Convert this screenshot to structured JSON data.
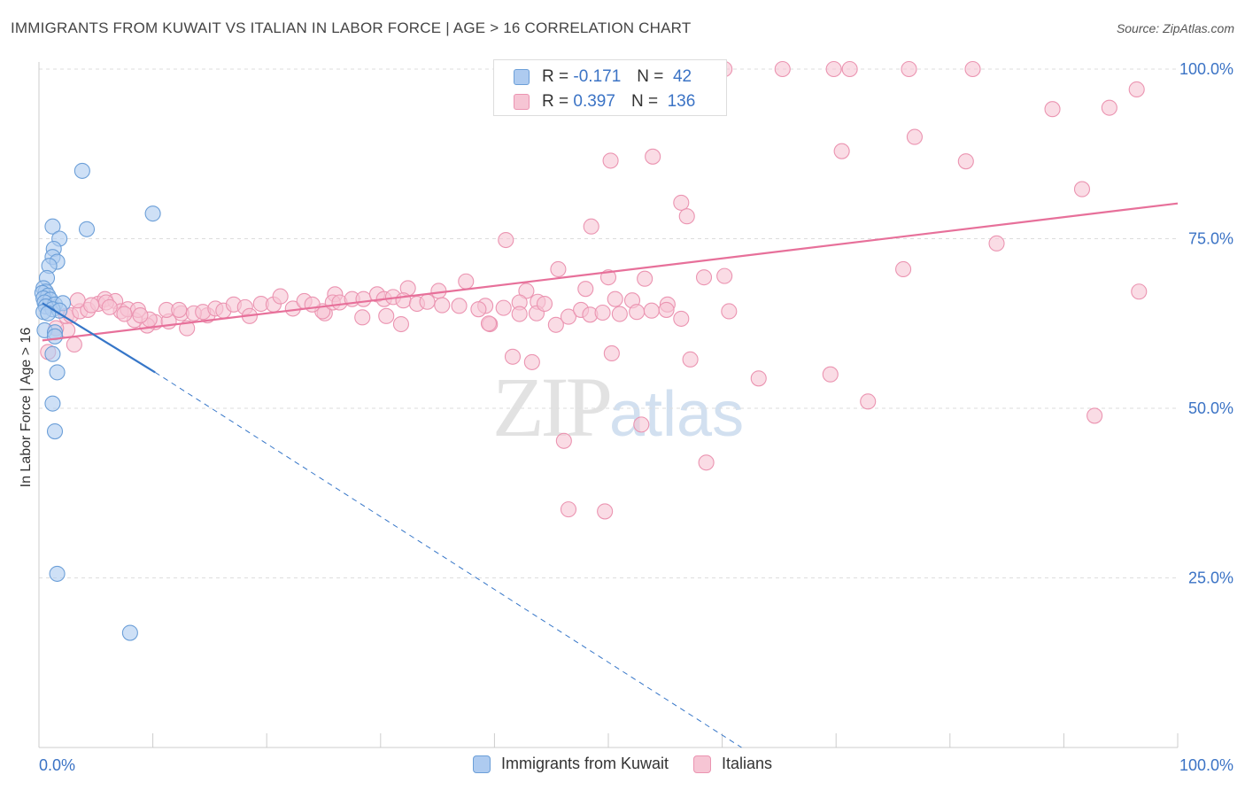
{
  "title": "IMMIGRANTS FROM KUWAIT VS ITALIAN IN LABOR FORCE | AGE > 16 CORRELATION CHART",
  "source": "Source: ZipAtlas.com",
  "watermark": {
    "zip": "ZIP",
    "atlas": "atlas"
  },
  "colors": {
    "blue_fill": "#aecbf0",
    "blue_stroke": "#6c9fd8",
    "blue_line": "#3676c8",
    "pink_fill": "#f6c5d4",
    "pink_stroke": "#eb94b1",
    "pink_line": "#e7709a",
    "axis_text": "#3b73c5",
    "grid": "#dddddd"
  },
  "legend": {
    "rows": [
      {
        "r_label": "R =",
        "r_value": "-0.171",
        "n_label": "N =",
        "n_value": "42"
      },
      {
        "r_label": "R =",
        "r_value": "0.397",
        "n_label": "N =",
        "n_value": "136"
      }
    ]
  },
  "bottom_legend": [
    "Immigrants from Kuwait",
    "Italians"
  ],
  "chart_data": {
    "type": "scatter",
    "title": "IMMIGRANTS FROM KUWAIT VS ITALIAN IN LABOR FORCE | AGE > 16 CORRELATION CHART",
    "xlabel": "",
    "ylabel": "In Labor Force | Age > 16",
    "xlim": [
      0,
      100
    ],
    "ylim": [
      0,
      100
    ],
    "x_tick_labels": [
      "0.0%",
      "100.0%"
    ],
    "y_ticks": [
      25,
      50,
      75,
      100
    ],
    "y_tick_labels": [
      "25.0%",
      "50.0%",
      "75.0%",
      "100.0%"
    ],
    "grid": true,
    "legend_position": "top-center",
    "series": [
      {
        "name": "Immigrants from Kuwait",
        "trend": {
          "x": [
            0.3,
            10.2
          ],
          "y": [
            65.5,
            55.3
          ],
          "dashed_to": [
            61.7,
            0
          ]
        },
        "points": [
          [
            3.8,
            85
          ],
          [
            10,
            78.7
          ],
          [
            4.2,
            76.4
          ],
          [
            1.2,
            76.8
          ],
          [
            1.8,
            75
          ],
          [
            1.3,
            73.5
          ],
          [
            1.2,
            72.3
          ],
          [
            1.6,
            71.6
          ],
          [
            0.9,
            71
          ],
          [
            0.7,
            69.2
          ],
          [
            0.4,
            67.7
          ],
          [
            0.6,
            67.2
          ],
          [
            0.3,
            67
          ],
          [
            0.8,
            66.6
          ],
          [
            0.4,
            66.2
          ],
          [
            1,
            66
          ],
          [
            0.5,
            65.6
          ],
          [
            1.4,
            65.3
          ],
          [
            2.1,
            65.5
          ],
          [
            0.6,
            65
          ],
          [
            1.2,
            64.6
          ],
          [
            1.8,
            64.4
          ],
          [
            0.4,
            64.2
          ],
          [
            0.8,
            64
          ],
          [
            0.5,
            61.5
          ],
          [
            1.4,
            61.2
          ],
          [
            1.4,
            60.6
          ],
          [
            1.2,
            58
          ],
          [
            1.6,
            55.3
          ],
          [
            1.2,
            50.7
          ],
          [
            1.4,
            46.6
          ],
          [
            1.6,
            25.6
          ],
          [
            8,
            16.9
          ]
        ]
      },
      {
        "name": "Italians",
        "trend": {
          "x": [
            0.3,
            100
          ],
          "y": [
            60,
            80.2
          ]
        },
        "points": [
          [
            56.2,
            100
          ],
          [
            58.2,
            100
          ],
          [
            60.2,
            100
          ],
          [
            65.3,
            100
          ],
          [
            69.8,
            100
          ],
          [
            71.2,
            100
          ],
          [
            76.4,
            100
          ],
          [
            82,
            100
          ],
          [
            96.4,
            97
          ],
          [
            89,
            94.1
          ],
          [
            94,
            94.3
          ],
          [
            76.9,
            90
          ],
          [
            70.5,
            87.9
          ],
          [
            50.2,
            86.5
          ],
          [
            53.9,
            87.1
          ],
          [
            81.4,
            86.4
          ],
          [
            91.6,
            82.3
          ],
          [
            56.4,
            80.3
          ],
          [
            56.9,
            78.3
          ],
          [
            48.5,
            76.8
          ],
          [
            41,
            74.8
          ],
          [
            60.2,
            69.5
          ],
          [
            84.1,
            74.3
          ],
          [
            75.9,
            70.5
          ],
          [
            45.6,
            70.5
          ],
          [
            50,
            69.3
          ],
          [
            53.2,
            69.1
          ],
          [
            58.4,
            69.3
          ],
          [
            37.5,
            68.7
          ],
          [
            42.8,
            67.3
          ],
          [
            48,
            67.6
          ],
          [
            35.1,
            67.3
          ],
          [
            32.4,
            67.7
          ],
          [
            26,
            66.8
          ],
          [
            96.6,
            67.2
          ],
          [
            50.6,
            66.1
          ],
          [
            52.1,
            65.9
          ],
          [
            55.2,
            65.3
          ],
          [
            43.8,
            65.7
          ],
          [
            42.2,
            65.6
          ],
          [
            39.2,
            65.1
          ],
          [
            60.6,
            64.3
          ],
          [
            56.4,
            63.2
          ],
          [
            45.4,
            62.3
          ],
          [
            39.6,
            62.4
          ],
          [
            39.5,
            62.5
          ],
          [
            30.5,
            63.6
          ],
          [
            31.8,
            62.4
          ],
          [
            28.4,
            63.4
          ],
          [
            25.1,
            64
          ],
          [
            24.9,
            64.3
          ],
          [
            12.5,
            64
          ],
          [
            14.8,
            63.7
          ],
          [
            10.2,
            62.7
          ],
          [
            9.5,
            62.2
          ],
          [
            8.4,
            63
          ],
          [
            11.4,
            62.8
          ],
          [
            13,
            61.8
          ],
          [
            41.6,
            57.6
          ],
          [
            43.3,
            56.8
          ],
          [
            50.3,
            58.1
          ],
          [
            57.2,
            57.2
          ],
          [
            63.2,
            54.4
          ],
          [
            69.5,
            55
          ],
          [
            72.8,
            51
          ],
          [
            92.7,
            48.9
          ],
          [
            46.1,
            45.2
          ],
          [
            52.9,
            47.6
          ],
          [
            58.6,
            42
          ],
          [
            46.5,
            35.1
          ],
          [
            49.7,
            34.8
          ],
          [
            3.1,
            59.4
          ],
          [
            2.5,
            61.5
          ],
          [
            1.5,
            61.8
          ],
          [
            0.8,
            58.3
          ],
          [
            2.4,
            63.6
          ],
          [
            2.8,
            63.7
          ],
          [
            3.6,
            64.3
          ],
          [
            4.3,
            64.5
          ],
          [
            5.2,
            65.4
          ],
          [
            5.8,
            66.1
          ],
          [
            6.7,
            65.8
          ],
          [
            7.2,
            64.3
          ],
          [
            7.8,
            64.6
          ],
          [
            8.7,
            64.5
          ],
          [
            9.7,
            63.1
          ],
          [
            11.2,
            64.5
          ],
          [
            12.3,
            64.5
          ],
          [
            13.6,
            64
          ],
          [
            14.4,
            64.2
          ],
          [
            15.5,
            64.7
          ],
          [
            16.2,
            64.4
          ],
          [
            17.1,
            65.3
          ],
          [
            18.1,
            64.9
          ],
          [
            18.5,
            63.6
          ],
          [
            19.5,
            65.4
          ],
          [
            20.6,
            65.3
          ],
          [
            21.2,
            66.5
          ],
          [
            22.3,
            64.7
          ],
          [
            23.3,
            65.8
          ],
          [
            24,
            65.3
          ],
          [
            25.8,
            65.6
          ],
          [
            26.4,
            65.6
          ],
          [
            27.5,
            66.1
          ],
          [
            28.5,
            66.1
          ],
          [
            29.7,
            66.8
          ],
          [
            30.3,
            66.1
          ],
          [
            31.1,
            66.4
          ],
          [
            32,
            65.9
          ],
          [
            33.2,
            65.4
          ],
          [
            34.1,
            65.7
          ],
          [
            35.4,
            65.2
          ],
          [
            36.9,
            65.1
          ],
          [
            38.6,
            64.6
          ],
          [
            40.8,
            64.8
          ],
          [
            42.2,
            63.9
          ],
          [
            43.7,
            64
          ],
          [
            44.4,
            65.4
          ],
          [
            46.5,
            63.5
          ],
          [
            47.6,
            64.5
          ],
          [
            48.4,
            63.8
          ],
          [
            49.5,
            64.1
          ],
          [
            51,
            63.9
          ],
          [
            52.5,
            64.2
          ],
          [
            53.8,
            64.4
          ],
          [
            55.1,
            64.5
          ],
          [
            3.4,
            65.9
          ],
          [
            4.6,
            65.2
          ],
          [
            5.9,
            65.6
          ],
          [
            6.2,
            64.9
          ],
          [
            7.5,
            63.9
          ],
          [
            8.9,
            63.7
          ]
        ]
      }
    ]
  }
}
